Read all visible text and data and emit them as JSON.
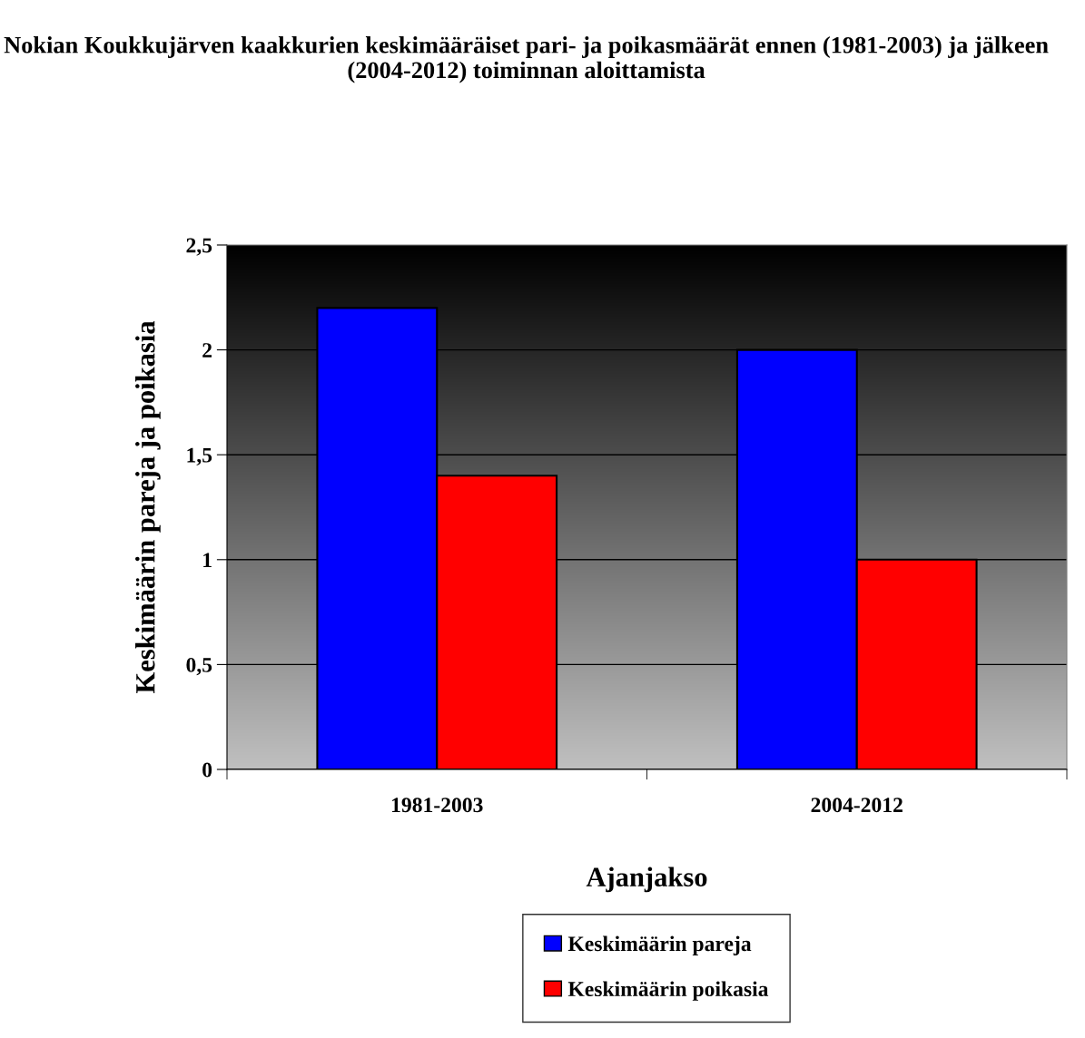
{
  "chart_data": {
    "type": "bar",
    "title": "Nokian Koukkujärven kaakkurien keskimääräiset pari- ja poikasmäärät ennen (1981-2003) ja jälkeen (2004-2012) toiminnan aloittamista",
    "xlabel": "Ajanjakso",
    "ylabel": "Keskimäärin pareja ja poikasia",
    "categories": [
      "1981-2003",
      "2004-2012"
    ],
    "series": [
      {
        "name": "Keskimäärin pareja",
        "color": "#0000ff",
        "values": [
          2.2,
          2.0
        ]
      },
      {
        "name": "Keskimäärin poikasia",
        "color": "#ff0000",
        "values": [
          1.4,
          1.0
        ]
      }
    ],
    "ylim": [
      0,
      2.5
    ],
    "yticks": [
      0,
      {
        "value": 0.5,
        "label": "0,5"
      },
      1,
      {
        "value": 1.5,
        "label": "1,5"
      },
      2,
      {
        "value": 2.5,
        "label": "2,5"
      }
    ],
    "grid": "y",
    "legend": "bottom"
  }
}
